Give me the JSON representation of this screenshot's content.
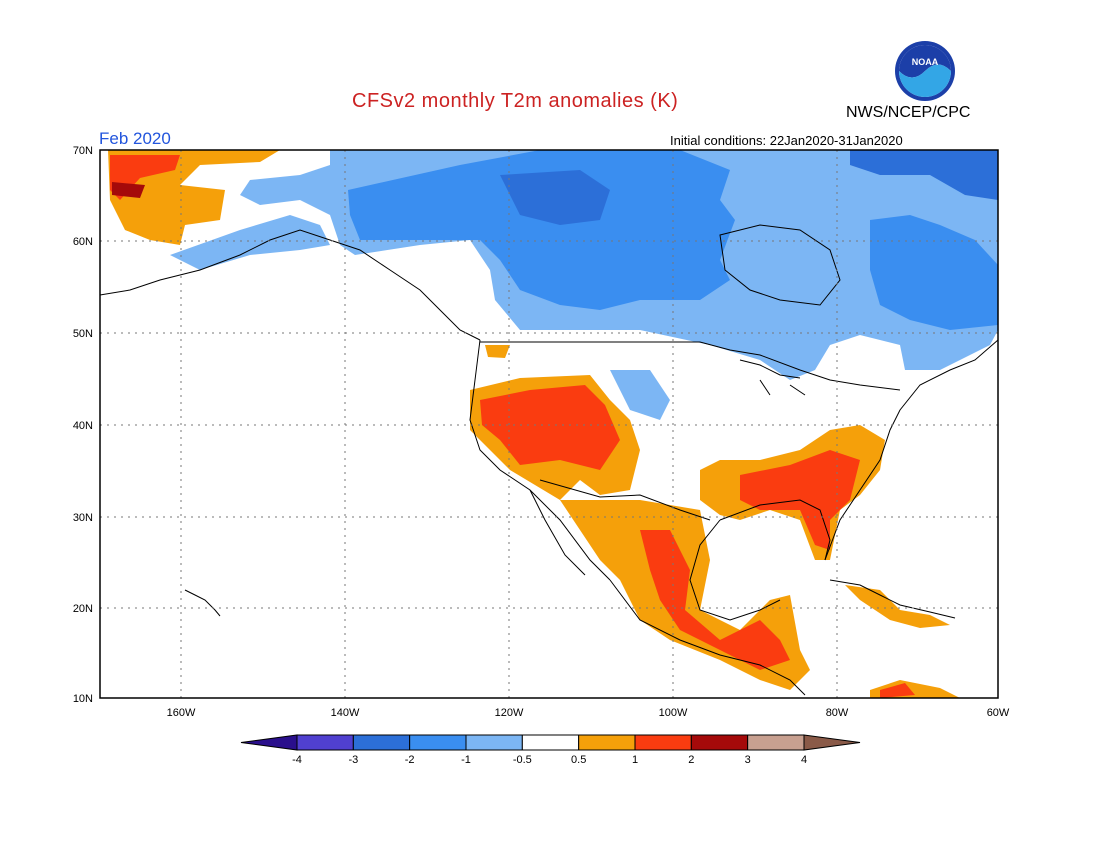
{
  "header": {
    "title": "CFSv2 monthly T2m anomalies (K)",
    "org": "NWS/NCEP/CPC",
    "logo_text": "NOAA",
    "period": "Feb 2020",
    "initial_conditions": "Initial conditions: 22Jan2020-31Jan2020"
  },
  "axes": {
    "lat_labels": [
      "70N",
      "60N",
      "50N",
      "40N",
      "30N",
      "20N",
      "10N"
    ],
    "lon_labels": [
      "160W",
      "140W",
      "120W",
      "100W",
      "80W",
      "60W"
    ]
  },
  "colorbar": {
    "tick_labels": [
      "-4",
      "-3",
      "-2",
      "-1",
      "-0.5",
      "0.5",
      "1",
      "2",
      "3",
      "4"
    ],
    "colors": [
      "#2a0f8c",
      "#5040d0",
      "#2c6fd8",
      "#3a8ef0",
      "#7cb6f4",
      "#ffffff",
      "#f5a00a",
      "#fa3c10",
      "#a50a0a",
      "#c8a090",
      "#8a5a48"
    ]
  }
}
